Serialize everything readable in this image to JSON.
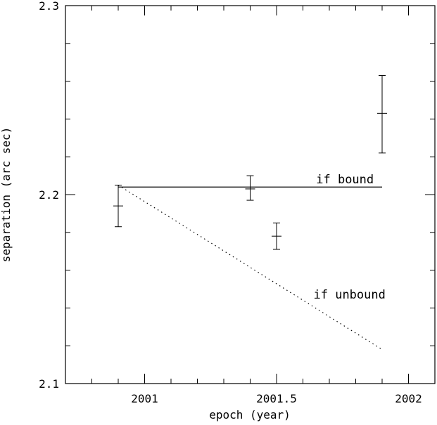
{
  "chart_data": {
    "type": "scatter",
    "title": "",
    "xlabel": "epoch (year)",
    "ylabel": "separation (arc sec)",
    "xlim": [
      2000.7,
      2002.1
    ],
    "ylim": [
      2.1,
      2.3
    ],
    "x_ticks": [
      {
        "value": 2001,
        "label": "2001"
      },
      {
        "value": 2001.5,
        "label": "2001.5"
      },
      {
        "value": 2002,
        "label": "2002"
      }
    ],
    "y_ticks": [
      {
        "value": 2.1,
        "label": "2.1"
      },
      {
        "value": 2.2,
        "label": "2.2"
      },
      {
        "value": 2.3,
        "label": "2.3"
      }
    ],
    "x_minor_step": 0.1,
    "y_minor_step": 0.02,
    "points": [
      {
        "x": 2000.9,
        "y": 2.194,
        "ylow": 2.183,
        "yhigh": 2.205
      },
      {
        "x": 2001.4,
        "y": 2.203,
        "ylow": 2.197,
        "yhigh": 2.21
      },
      {
        "x": 2001.5,
        "y": 2.178,
        "ylow": 2.171,
        "yhigh": 2.185
      },
      {
        "x": 2001.9,
        "y": 2.243,
        "ylow": 2.222,
        "yhigh": 2.263
      }
    ],
    "lines": [
      {
        "name": "if bound",
        "style": "solid",
        "x": [
          2000.9,
          2001.9
        ],
        "y": [
          2.204,
          2.204
        ]
      },
      {
        "name": "if unbound",
        "style": "dotted",
        "x": [
          2000.9,
          2001.9
        ],
        "y": [
          2.205,
          2.118
        ]
      }
    ],
    "annotations": [
      {
        "text": "if bound",
        "x": 2001.65,
        "y": 2.206
      },
      {
        "text": "if unbound",
        "x": 2001.64,
        "y": 2.145
      }
    ]
  }
}
